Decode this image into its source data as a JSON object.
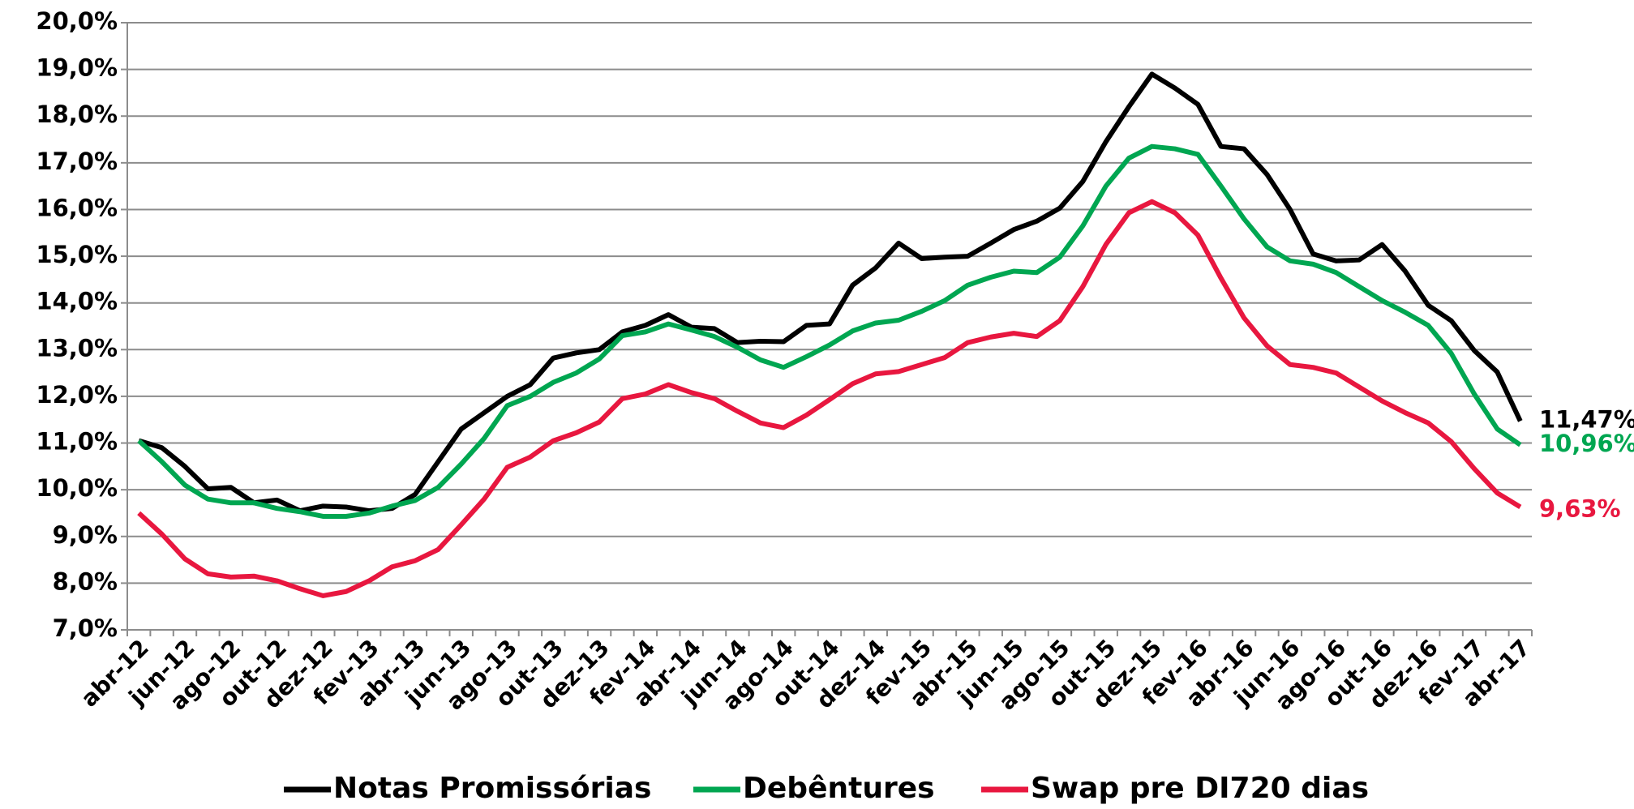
{
  "chart_data": {
    "type": "line",
    "legend": "bottom",
    "grid": true,
    "categories": [
      "abr-12",
      null,
      "jun-12",
      null,
      "ago-12",
      null,
      "out-12",
      null,
      "dez-12",
      null,
      "fev-13",
      null,
      "abr-13",
      null,
      "jun-13",
      null,
      "ago-13",
      null,
      "out-13",
      null,
      "dez-13",
      null,
      "fev-14",
      null,
      "abr-14",
      null,
      "jun-14",
      null,
      "ago-14",
      null,
      "out-14",
      null,
      "dez-14",
      null,
      "fev-15",
      null,
      "abr-15",
      null,
      "jun-15",
      null,
      "ago-15",
      null,
      "out-15",
      null,
      "dez-15",
      null,
      "fev-16",
      null,
      "abr-16",
      null,
      "jun-16",
      null,
      "ago-16",
      null,
      "out-16",
      null,
      "dez-16",
      null,
      "fev-17",
      null,
      "abr-17"
    ],
    "ylim": [
      7,
      20
    ],
    "yticks": [
      {
        "value": 7,
        "label": "7,0%"
      },
      {
        "value": 8,
        "label": "8,0%"
      },
      {
        "value": 9,
        "label": "9,0%"
      },
      {
        "value": 10,
        "label": "10,0%"
      },
      {
        "value": 11,
        "label": "11,0%"
      },
      {
        "value": 12,
        "label": "12,0%"
      },
      {
        "value": 13,
        "label": "13,0%"
      },
      {
        "value": 14,
        "label": "14,0%"
      },
      {
        "value": 15,
        "label": "15,0%"
      },
      {
        "value": 16,
        "label": "16,0%"
      },
      {
        "value": 17,
        "label": "17,0%"
      },
      {
        "value": 18,
        "label": "18,0%"
      },
      {
        "value": 19,
        "label": "19,0%"
      },
      {
        "value": 20,
        "label": "20,0%"
      }
    ],
    "series": [
      {
        "name": "Notas Promissórias",
        "color": "#000000",
        "end_label": "11,47%",
        "values": [
          11.05,
          10.9,
          10.5,
          10.02,
          10.05,
          9.72,
          9.78,
          9.55,
          9.65,
          9.63,
          9.55,
          9.6,
          9.9,
          10.6,
          11.3,
          11.65,
          12.0,
          12.25,
          12.82,
          12.93,
          13.0,
          13.38,
          13.52,
          13.75,
          13.48,
          13.45,
          13.15,
          13.18,
          13.17,
          13.52,
          13.55,
          14.38,
          14.75,
          15.28,
          14.95,
          14.98,
          15.0,
          15.28,
          15.57,
          15.75,
          16.03,
          16.6,
          17.45,
          18.2,
          18.9,
          18.6,
          18.25,
          17.35,
          17.3,
          16.75,
          16.0,
          15.05,
          14.9,
          14.92,
          15.25,
          14.68,
          13.95,
          13.62,
          12.98,
          12.52,
          11.47
        ]
      },
      {
        "name": "Debêntures",
        "color": "#00a651",
        "end_label": "10,96%",
        "values": [
          11.05,
          10.6,
          10.1,
          9.8,
          9.72,
          9.72,
          9.6,
          9.53,
          9.43,
          9.43,
          9.5,
          9.65,
          9.77,
          10.05,
          10.55,
          11.1,
          11.8,
          12.0,
          12.3,
          12.5,
          12.8,
          13.3,
          13.38,
          13.55,
          13.42,
          13.28,
          13.05,
          12.78,
          12.62,
          12.85,
          13.1,
          13.4,
          13.57,
          13.63,
          13.82,
          14.05,
          14.38,
          14.55,
          14.68,
          14.65,
          14.98,
          15.65,
          16.5,
          17.1,
          17.35,
          17.3,
          17.18,
          16.5,
          15.8,
          15.2,
          14.9,
          14.83,
          14.65,
          14.35,
          14.05,
          13.8,
          13.52,
          12.92,
          12.05,
          11.3,
          10.96
        ]
      },
      {
        "name": "Swap pre DI720 dias",
        "color": "#e8173f",
        "end_label": "9,63%",
        "values": [
          9.5,
          9.05,
          8.52,
          8.2,
          8.13,
          8.15,
          8.05,
          7.88,
          7.73,
          7.82,
          8.05,
          8.35,
          8.48,
          8.72,
          9.25,
          9.8,
          10.48,
          10.7,
          11.05,
          11.22,
          11.45,
          11.95,
          12.05,
          12.25,
          12.08,
          11.95,
          11.68,
          11.43,
          11.33,
          11.6,
          11.93,
          12.27,
          12.48,
          12.53,
          12.68,
          12.83,
          13.15,
          13.27,
          13.35,
          13.28,
          13.62,
          14.35,
          15.25,
          15.93,
          16.17,
          15.93,
          15.45,
          14.53,
          13.68,
          13.08,
          12.68,
          12.62,
          12.5,
          12.2,
          11.9,
          11.65,
          11.43,
          11.03,
          10.45,
          9.93,
          9.63
        ]
      }
    ]
  }
}
